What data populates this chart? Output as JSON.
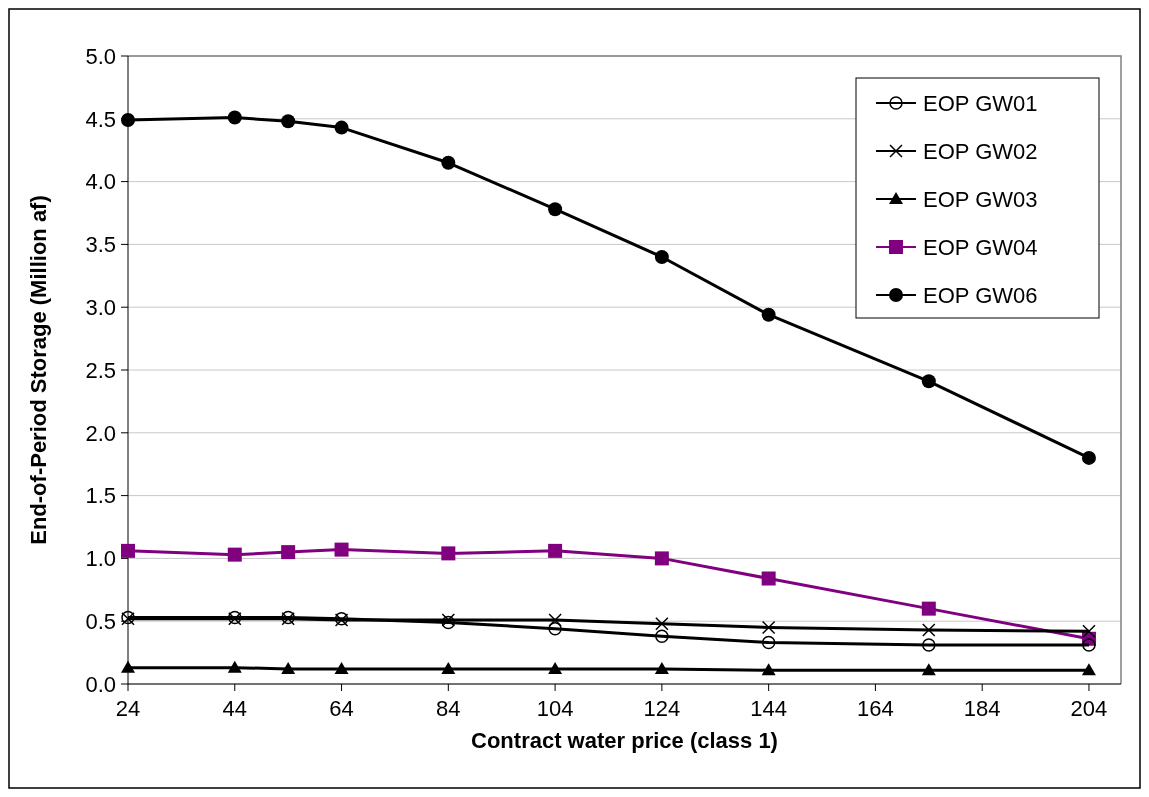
{
  "chart_data": {
    "type": "line",
    "xlabel": "Contract water price (class 1)",
    "ylabel": "End-of-Period Storage (Million af)",
    "x": [
      24,
      44,
      54,
      64,
      84,
      104,
      124,
      144,
      174,
      204
    ],
    "xlim": [
      24,
      210
    ],
    "xticks": [
      24,
      44,
      64,
      84,
      104,
      124,
      144,
      164,
      184,
      204
    ],
    "ylim": [
      0,
      5
    ],
    "yticks": [
      {
        "value": 0,
        "label": "0.0"
      },
      {
        "value": 0.5,
        "label": "0.5"
      },
      {
        "value": 1,
        "label": "1.0"
      },
      {
        "value": 1.5,
        "label": "1.5"
      },
      {
        "value": 2,
        "label": "2.0"
      },
      {
        "value": 2.5,
        "label": "2.5"
      },
      {
        "value": 3,
        "label": "3.0"
      },
      {
        "value": 3.5,
        "label": "3.5"
      },
      {
        "value": 4,
        "label": "4.0"
      },
      {
        "value": 4.5,
        "label": "4.5"
      },
      {
        "value": 5,
        "label": "5.0"
      }
    ],
    "grid": "y",
    "legend": "top right",
    "series": [
      {
        "name": "EOP GW01",
        "color": "#000000",
        "marker": "circle-open",
        "values": [
          0.53,
          0.53,
          0.53,
          0.52,
          0.49,
          0.44,
          0.38,
          0.33,
          0.31,
          0.31
        ]
      },
      {
        "name": "EOP GW02",
        "color": "#000000",
        "marker": "cross",
        "values": [
          0.52,
          0.52,
          0.52,
          0.51,
          0.51,
          0.51,
          0.48,
          0.45,
          0.43,
          0.42
        ]
      },
      {
        "name": "EOP GW03",
        "color": "#000000",
        "marker": "triangle",
        "values": [
          0.13,
          0.13,
          0.12,
          0.12,
          0.12,
          0.12,
          0.12,
          0.11,
          0.11,
          0.11
        ]
      },
      {
        "name": "EOP GW04",
        "color": "#800080",
        "marker": "square",
        "values": [
          1.06,
          1.03,
          1.05,
          1.07,
          1.04,
          1.06,
          1.0,
          0.84,
          0.6,
          0.36
        ]
      },
      {
        "name": "EOP GW06",
        "color": "#000000",
        "marker": "circle",
        "values": [
          4.49,
          4.51,
          4.48,
          4.43,
          4.15,
          3.78,
          3.4,
          2.94,
          2.41,
          1.8
        ]
      }
    ]
  }
}
